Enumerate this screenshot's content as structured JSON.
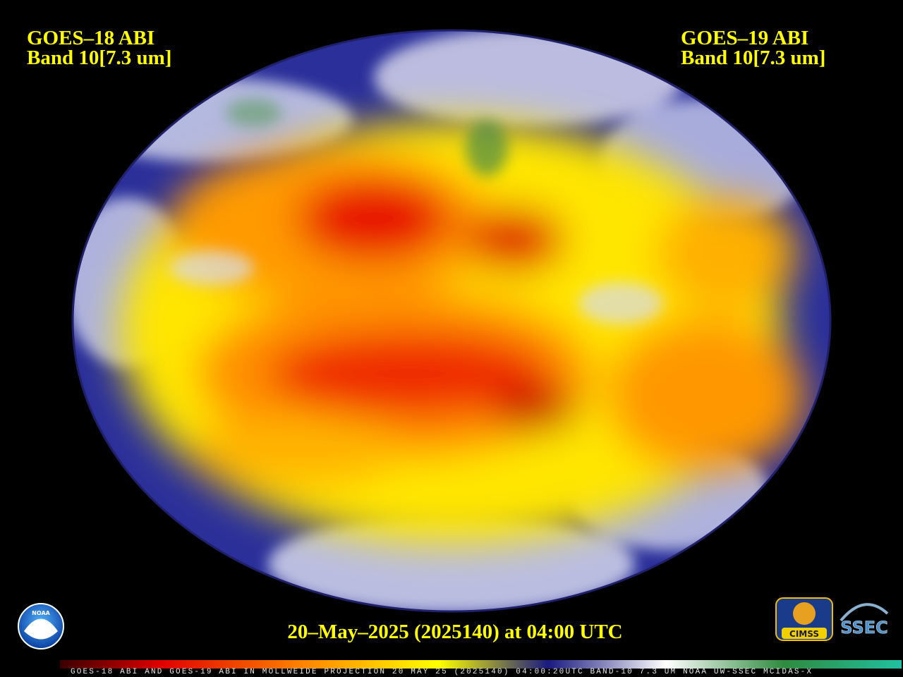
{
  "header": {
    "left": {
      "satellite": "GOES–18 ABI",
      "band": "Band 10[7.3 um]"
    },
    "right": {
      "satellite": "GOES–19 ABI",
      "band": "Band 10[7.3 um]"
    }
  },
  "footer": {
    "timestamp": "20–May–2025 (2025140) at 04:00 UTC"
  },
  "colorbar": {
    "caption": "GOES-18 ABI AND GOES-19 ABI IN MOLLWEIDE PROJECTION 20 MAY 25 (2025140) 04:00:20UTC BAND-10 7.3 UM NOAA UW-SSEC MCIDAS-X"
  },
  "logos": {
    "noaa": "NOAA",
    "cimss": "CIMSS",
    "ssec": "SSEC"
  }
}
